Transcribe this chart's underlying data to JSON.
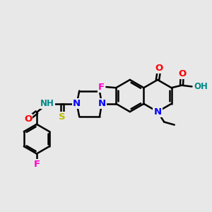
{
  "bg_color": "#e8e8e8",
  "bond_color": "#000000",
  "bond_width": 1.8,
  "atom_colors": {
    "F": "#ff00cc",
    "N": "#0000ff",
    "NH": "#008888",
    "O": "#ff0000",
    "S": "#bbbb00",
    "OH": "#008888"
  },
  "font_size": 8.5,
  "figsize": [
    3.0,
    3.0
  ],
  "dpi": 100
}
